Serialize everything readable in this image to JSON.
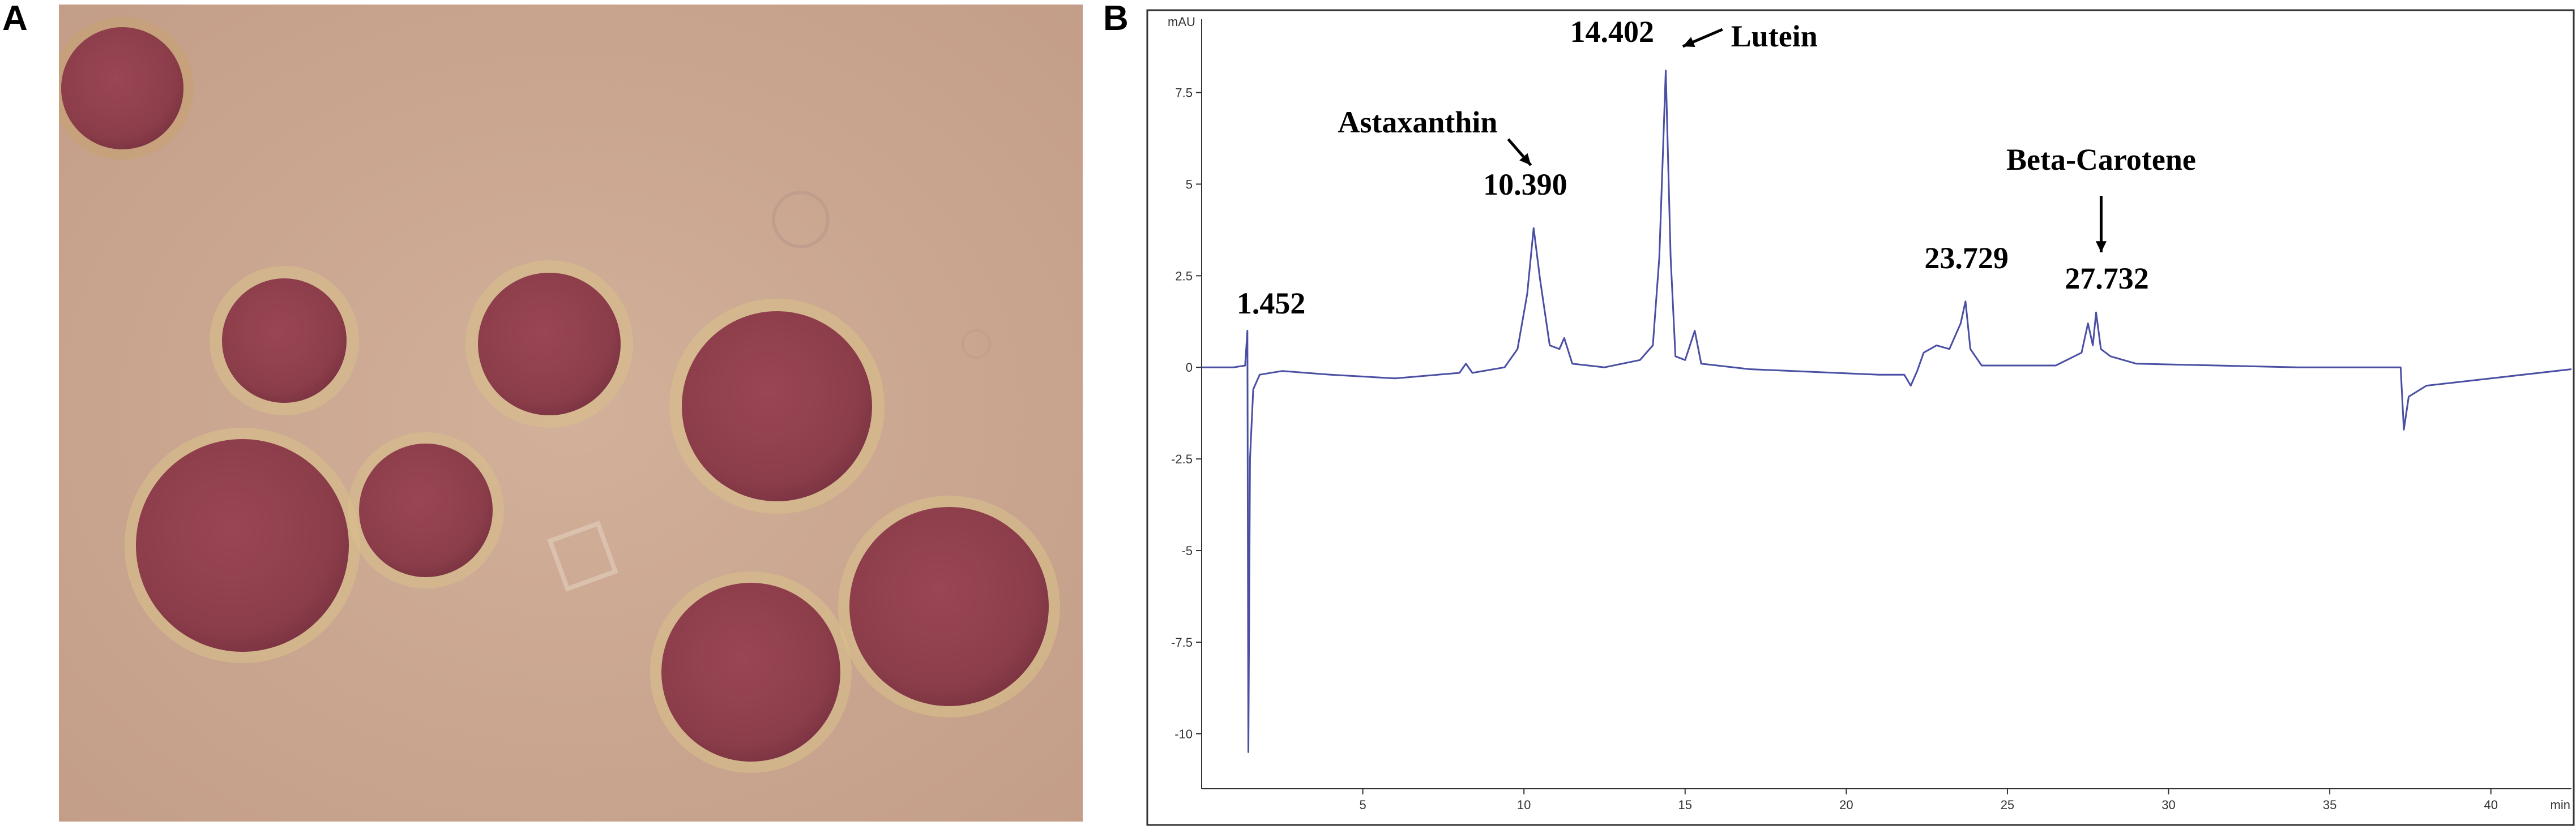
{
  "panels": {
    "a_label": "A",
    "b_label": "B"
  },
  "colors": {
    "background_micrograph": "#c9a58f",
    "cyst_fill": "#92424f",
    "cyst_wall": "#d9c08a",
    "trace": "#4a4fa3",
    "axis": "#333333"
  },
  "chart_data": {
    "type": "line",
    "title": "",
    "xlabel": "",
    "ylabel": "",
    "x_unit": "min",
    "y_unit": "mAU",
    "xlim": [
      0,
      42.5
    ],
    "ylim": [
      -11.5,
      9.5
    ],
    "x_ticks": [
      5,
      10,
      15,
      20,
      25,
      30,
      35,
      40
    ],
    "y_ticks": [
      7.5,
      5,
      2.5,
      0,
      -2.5,
      -5,
      -7.5,
      -10
    ],
    "grid": false,
    "series": [
      {
        "points": [
          [
            0.0,
            0.0
          ],
          [
            1.0,
            0.0
          ],
          [
            1.35,
            0.05
          ],
          [
            1.42,
            1.0
          ],
          [
            1.45,
            -10.5
          ],
          [
            1.5,
            -2.5
          ],
          [
            1.6,
            -0.6
          ],
          [
            1.8,
            -0.2
          ],
          [
            2.5,
            -0.1
          ],
          [
            4.0,
            -0.2
          ],
          [
            6.0,
            -0.3
          ],
          [
            8.0,
            -0.15
          ],
          [
            8.2,
            0.1
          ],
          [
            8.4,
            -0.15
          ],
          [
            9.4,
            0.0
          ],
          [
            9.8,
            0.5
          ],
          [
            10.1,
            2.0
          ],
          [
            10.3,
            3.8
          ],
          [
            10.5,
            2.4
          ],
          [
            10.8,
            0.6
          ],
          [
            11.1,
            0.5
          ],
          [
            11.25,
            0.8
          ],
          [
            11.5,
            0.1
          ],
          [
            12.5,
            0.0
          ],
          [
            13.6,
            0.2
          ],
          [
            14.0,
            0.6
          ],
          [
            14.2,
            3.0
          ],
          [
            14.4,
            8.1
          ],
          [
            14.55,
            3.0
          ],
          [
            14.7,
            0.3
          ],
          [
            15.0,
            0.2
          ],
          [
            15.3,
            1.0
          ],
          [
            15.5,
            0.1
          ],
          [
            17.0,
            -0.05
          ],
          [
            21.0,
            -0.2
          ],
          [
            21.8,
            -0.2
          ],
          [
            22.0,
            -0.5
          ],
          [
            22.2,
            -0.1
          ],
          [
            22.4,
            0.4
          ],
          [
            22.8,
            0.6
          ],
          [
            23.2,
            0.5
          ],
          [
            23.55,
            1.2
          ],
          [
            23.7,
            1.8
          ],
          [
            23.85,
            0.5
          ],
          [
            24.2,
            0.05
          ],
          [
            26.5,
            0.05
          ],
          [
            27.3,
            0.4
          ],
          [
            27.5,
            1.2
          ],
          [
            27.65,
            0.6
          ],
          [
            27.75,
            1.5
          ],
          [
            27.9,
            0.5
          ],
          [
            28.2,
            0.3
          ],
          [
            29.0,
            0.1
          ],
          [
            34.0,
            0.0
          ],
          [
            37.2,
            0.0
          ],
          [
            37.3,
            -1.7
          ],
          [
            37.45,
            -0.8
          ],
          [
            38.0,
            -0.5
          ],
          [
            40.0,
            -0.3
          ],
          [
            42.5,
            -0.05
          ]
        ]
      }
    ],
    "annotations": [
      {
        "text": "1.452",
        "x": 1.452
      },
      {
        "text": "Astaxanthin",
        "x": 10.39
      },
      {
        "text": "10.390",
        "x": 10.39
      },
      {
        "text": "14.402",
        "x": 14.402
      },
      {
        "text": "Lutein",
        "x": 14.402
      },
      {
        "text": "23.729",
        "x": 23.729
      },
      {
        "text": "Beta-Carotene",
        "x": 27.732
      },
      {
        "text": "27.732",
        "x": 27.732
      }
    ]
  }
}
